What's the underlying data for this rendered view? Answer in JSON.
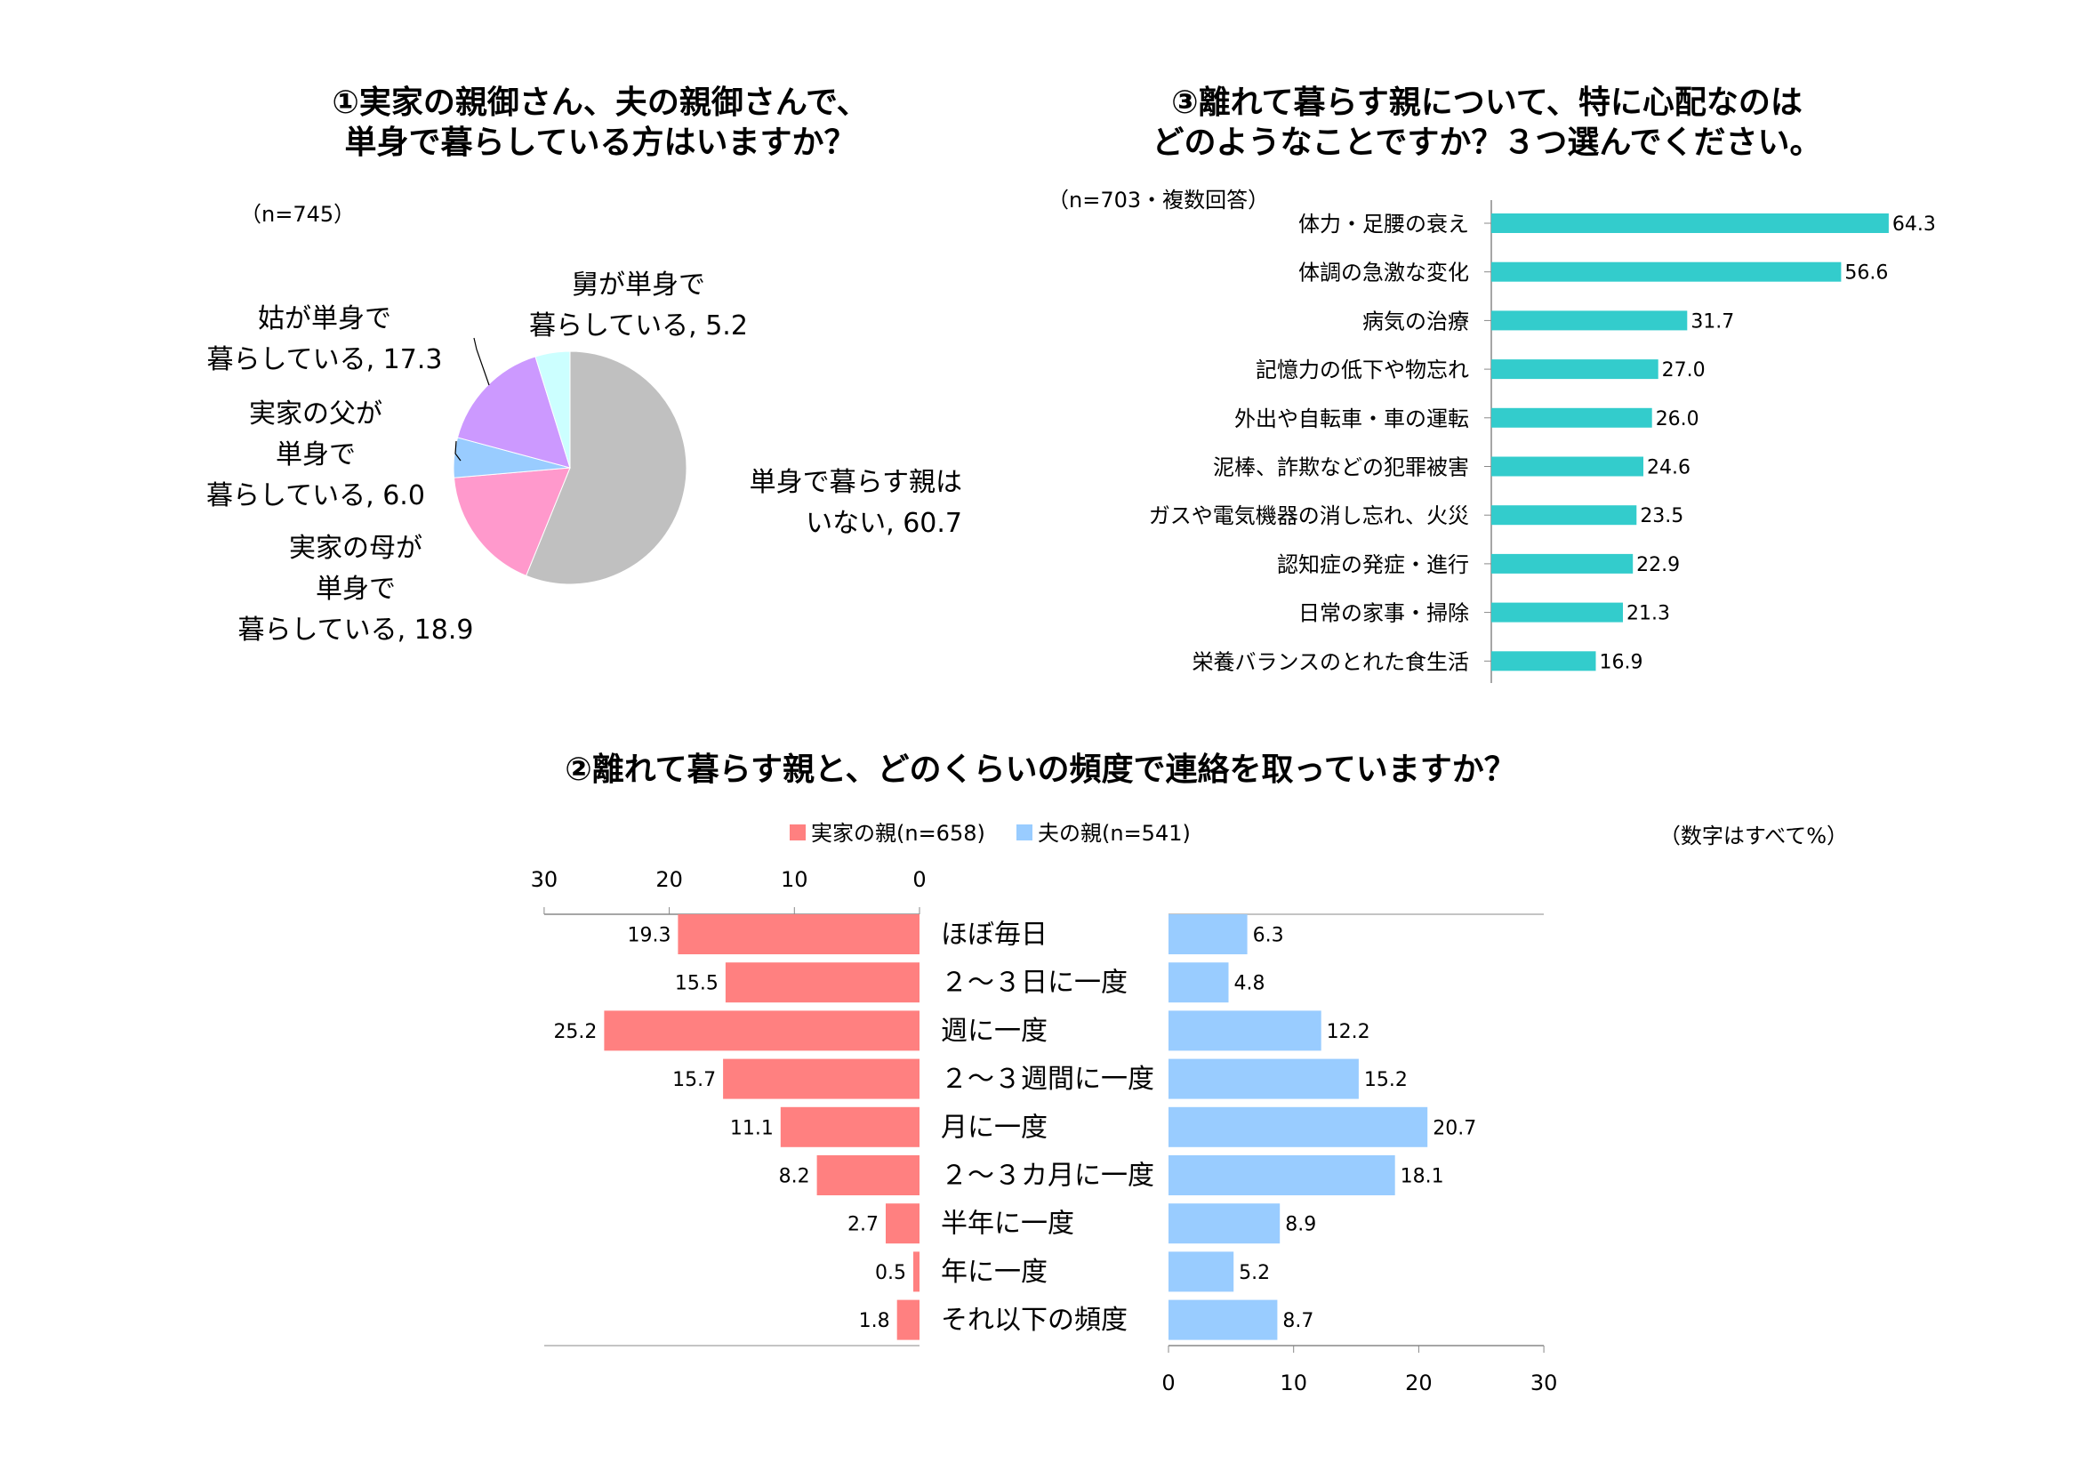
{
  "chart_data": [
    {
      "type": "pie",
      "title": [
        "①実家の親御さん、夫の親御さんで、",
        "単身で暮らしている方はいますか？"
      ],
      "n_label": "（n=745）",
      "slices": [
        {
          "label": [
            "単身で暮らす親は",
            "いない, 60.7"
          ],
          "value": 60.7,
          "color": "#c0c0c0"
        },
        {
          "label": [
            "実家の母が",
            "単身で",
            "暮らしている, 18.9"
          ],
          "value": 18.9,
          "color": "#ff99cc"
        },
        {
          "label": [
            "実家の父が",
            "単身で",
            "暮らしている, 6.0"
          ],
          "value": 6.0,
          "color": "#99ccff"
        },
        {
          "label": [
            "姑が単身で",
            "暮らしている, 17.3"
          ],
          "value": 17.3,
          "color": "#cc99ff"
        },
        {
          "label": [
            "舅が単身で",
            "暮らしている, 5.2"
          ],
          "value": 5.2,
          "color": "#ccffff"
        }
      ]
    },
    {
      "type": "bar",
      "orientation": "horizontal",
      "title": [
        "③離れて暮らす親について、特に心配なのは",
        "どのようなことですか？３つ選んでください。"
      ],
      "n_label": "（n=703・複数回答）",
      "color": "#33cccc",
      "xlim": [
        0,
        70
      ],
      "categories": [
        "体力・足腰の衰え",
        "体調の急激な変化",
        "病気の治療",
        "記憶力の低下や物忘れ",
        "外出や自転車・車の運転",
        "泥棒、詐欺などの犯罪被害",
        "ガスや電気機器の消し忘れ、火災",
        "認知症の発症・進行",
        "日常の家事・掃除",
        "栄養バランスのとれた食生活"
      ],
      "values": [
        64.3,
        56.6,
        31.7,
        27.0,
        26.0,
        24.6,
        23.5,
        22.9,
        21.3,
        16.9
      ],
      "value_labels": [
        "64.3",
        "56.6",
        "31.7",
        "27.0",
        "26.0",
        "24.6",
        "23.5",
        "22.9",
        "21.3",
        "16.9"
      ]
    },
    {
      "type": "bar",
      "orientation": "horizontal-butterfly",
      "title": "②離れて暮らす親と、どのくらいの頻度で連絡を取っていますか？",
      "unit_note": "（数字はすべて%）",
      "xlim": [
        0,
        30
      ],
      "ticks": [
        "0",
        "10",
        "20",
        "30"
      ],
      "categories": [
        "ほぼ毎日",
        "２～３日に一度",
        "週に一度",
        "２～３週間に一度",
        "月に一度",
        "２～３カ月に一度",
        "半年に一度",
        "年に一度",
        "それ以下の頻度"
      ],
      "series": [
        {
          "name": "実家の親(n=658)",
          "color": "#ff8080",
          "values": [
            19.3,
            15.5,
            25.2,
            15.7,
            11.1,
            8.2,
            2.7,
            0.5,
            1.8
          ],
          "value_labels": [
            "19.3",
            "15.5",
            "25.2",
            "15.7",
            "11.1",
            "8.2",
            "2.7",
            "0.5",
            "1.8"
          ]
        },
        {
          "name": "夫の親(n=541)",
          "color": "#99ccff",
          "values": [
            6.3,
            4.8,
            12.2,
            15.2,
            20.7,
            18.1,
            8.9,
            5.2,
            8.7
          ],
          "value_labels": [
            "6.3",
            "4.8",
            "12.2",
            "15.2",
            "20.7",
            "18.1",
            "8.9",
            "5.2",
            "8.7"
          ]
        }
      ]
    }
  ]
}
